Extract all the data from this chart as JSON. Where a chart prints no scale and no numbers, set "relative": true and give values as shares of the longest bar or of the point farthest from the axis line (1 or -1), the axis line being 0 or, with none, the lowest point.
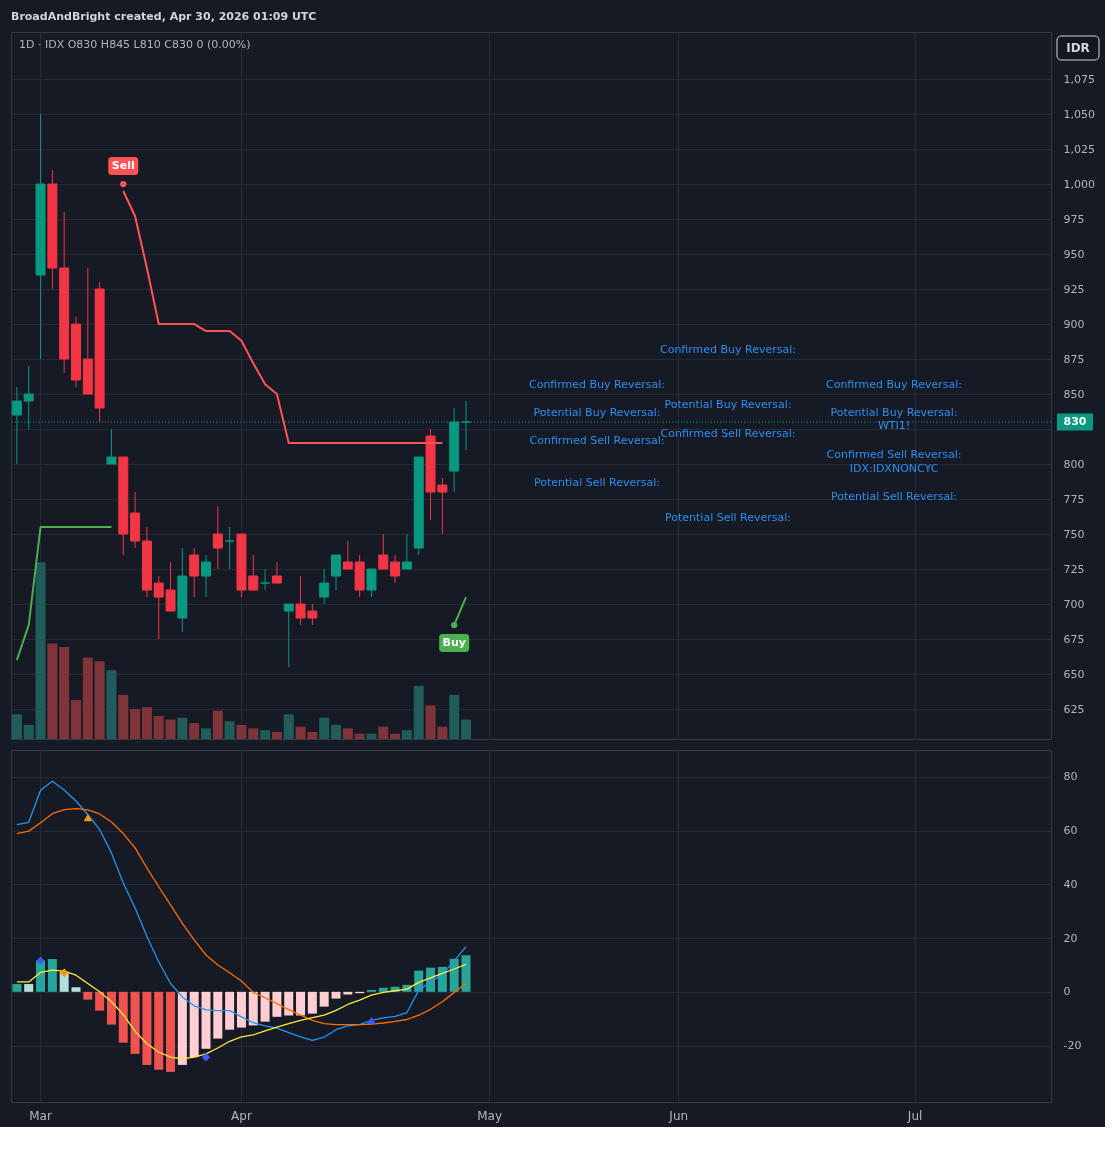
{
  "chart_data": [
    {
      "type": "candlestick",
      "title": "1D · IDX  O830 H845 L810 C830 0 (0.00%)",
      "categories": [
        null,
        null,
        null,
        null,
        null,
        null,
        null,
        null,
        null,
        null,
        null,
        null,
        null,
        null,
        null,
        null,
        null,
        null,
        null,
        null,
        null,
        null,
        null,
        null,
        null,
        null,
        null,
        null,
        null,
        null,
        null,
        null,
        null,
        null,
        null,
        null,
        null,
        null,
        null,
        null,
        null,
        null,
        null,
        null,
        null,
        null,
        null,
        null,
        null,
        null,
        null,
        null,
        null,
        null,
        null,
        null,
        null,
        null,
        null,
        null,
        null,
        null,
        null,
        null,
        null,
        null,
        null,
        null,
        null,
        null,
        null,
        null,
        null,
        null,
        null,
        null,
        null,
        null,
        null,
        null,
        null,
        null,
        null,
        null,
        null,
        null,
        null,
        null
      ],
      "ohlc": [
        [
          835,
          855,
          800,
          845
        ],
        [
          845,
          870,
          825,
          850
        ],
        [
          935,
          1050,
          875,
          1000
        ],
        [
          1000,
          1010,
          925,
          940
        ],
        [
          940,
          980,
          865,
          875
        ],
        [
          900,
          905,
          855,
          860
        ],
        [
          875,
          940,
          850,
          850
        ],
        [
          925,
          930,
          830,
          840
        ],
        [
          800,
          825,
          800,
          805
        ],
        [
          805,
          805,
          735,
          750
        ],
        [
          765,
          780,
          740,
          745
        ],
        [
          745,
          755,
          705,
          710
        ],
        [
          715,
          720,
          675,
          705
        ],
        [
          710,
          730,
          695,
          695
        ],
        [
          690,
          740,
          680,
          720
        ],
        [
          735,
          740,
          705,
          720
        ],
        [
          720,
          735,
          705,
          730
        ],
        [
          750,
          770,
          725,
          740
        ],
        [
          745,
          755,
          725,
          745
        ],
        [
          750,
          750,
          705,
          710
        ],
        [
          720,
          735,
          710,
          710
        ],
        [
          715,
          725,
          710,
          715
        ],
        [
          720,
          730,
          715,
          715
        ],
        [
          695,
          700,
          655,
          700
        ],
        [
          700,
          720,
          685,
          690
        ],
        [
          695,
          700,
          685,
          690
        ],
        [
          705,
          725,
          700,
          715
        ],
        [
          720,
          735,
          710,
          735
        ],
        [
          730,
          745,
          725,
          725
        ],
        [
          730,
          735,
          705,
          710
        ],
        [
          710,
          725,
          705,
          725
        ],
        [
          735,
          750,
          725,
          725
        ],
        [
          730,
          735,
          715,
          720
        ],
        [
          725,
          750,
          725,
          730
        ],
        [
          740,
          805,
          735,
          805
        ],
        [
          820,
          825,
          760,
          780
        ],
        [
          785,
          790,
          750,
          780
        ],
        [
          795,
          840,
          780,
          830
        ],
        [
          830,
          845,
          810,
          830
        ],
        null,
        null,
        null,
        null,
        null,
        null,
        null,
        null,
        null,
        null,
        null,
        null,
        null,
        null,
        null,
        null,
        null,
        null,
        null,
        null,
        null,
        null,
        null,
        null,
        null,
        null,
        null,
        null,
        null,
        null,
        null,
        null,
        null,
        null,
        null,
        null,
        null,
        null,
        null,
        null,
        null,
        null,
        null,
        null,
        null,
        null,
        null,
        null,
        null
      ],
      "colors": [
        "#089981",
        "#089981",
        "#089981",
        "#f23645",
        "#f23645",
        "#f23645",
        "#f23645",
        "#f23645",
        "#089981",
        "#f23645",
        "#f23645",
        "#f23645",
        "#f23645",
        "#f23645",
        "#089981",
        "#f23645",
        "#089981",
        "#f23645",
        "#089981",
        "#f23645",
        "#f23645",
        "#089981",
        "#f23645",
        "#089981",
        "#f23645",
        "#f23645",
        "#089981",
        "#089981",
        "#f23645",
        "#f23645",
        "#089981",
        "#f23645",
        "#f23645",
        "#089981",
        "#089981",
        "#f23645",
        "#f23645",
        "#089981",
        "#089981",
        null,
        null,
        null,
        null,
        null,
        null,
        null,
        null,
        null,
        null,
        null,
        null,
        null,
        null,
        null,
        null,
        null,
        null,
        null,
        null,
        null,
        null,
        null,
        null,
        null,
        null,
        null,
        null,
        null,
        null,
        null,
        null,
        null,
        null,
        null,
        null,
        null,
        null,
        null,
        null,
        null,
        null,
        null,
        null,
        null,
        null,
        null,
        null,
        null
      ],
      "series": [
        {
          "type": "line",
          "color": "#4caf50",
          "values": [
            660,
            685,
            755,
            755,
            755,
            755,
            755,
            755,
            755,
            null,
            null,
            null,
            null,
            null,
            null,
            null,
            null,
            null,
            null,
            null,
            null,
            null,
            null,
            null,
            null,
            null,
            null,
            null,
            null,
            null,
            null,
            null,
            null,
            null,
            null,
            null,
            null,
            null,
            null,
            null,
            null,
            null,
            null,
            null,
            null,
            null,
            null,
            null,
            null,
            null,
            null,
            null,
            null,
            null,
            null,
            null,
            null,
            null,
            null,
            null,
            null,
            null,
            null,
            null,
            null,
            null,
            null,
            null,
            null,
            null,
            null,
            null,
            null,
            null,
            null,
            null,
            null,
            null,
            null,
            null,
            null,
            null,
            null,
            null,
            null,
            null,
            null,
            null
          ]
        },
        {
          "type": "line",
          "color": "#ff5252",
          "values": [
            null,
            null,
            null,
            null,
            null,
            null,
            null,
            null,
            null,
            995,
            977,
            940,
            900,
            900,
            900,
            900,
            895,
            895,
            895,
            888,
            872,
            857,
            850,
            815,
            815,
            815,
            815,
            815,
            815,
            815,
            815,
            815,
            815,
            815,
            815,
            815,
            815,
            null,
            null,
            null,
            null,
            null,
            null,
            null,
            null,
            null,
            null,
            null,
            null,
            null,
            null,
            null,
            null,
            null,
            null,
            null,
            null,
            null,
            null,
            null,
            null,
            null,
            null,
            null,
            null,
            null,
            null,
            null,
            null,
            null,
            null,
            null,
            null,
            null,
            null,
            null,
            null,
            null,
            null,
            null,
            null,
            null,
            null,
            null,
            null,
            null,
            null,
            null
          ]
        },
        {
          "type": "line",
          "color": "#4caf50",
          "values": [
            null,
            null,
            null,
            null,
            null,
            null,
            null,
            null,
            null,
            null,
            null,
            null,
            null,
            null,
            null,
            null,
            null,
            null,
            null,
            null,
            null,
            null,
            null,
            null,
            null,
            null,
            null,
            null,
            null,
            null,
            null,
            null,
            null,
            null,
            null,
            null,
            null,
            685,
            705,
            null,
            null,
            null,
            null,
            null,
            null,
            null,
            null,
            null,
            null,
            null,
            null,
            null,
            null,
            null,
            null,
            null,
            null,
            null,
            null,
            null,
            null,
            null,
            null,
            null,
            null,
            null,
            null,
            null,
            null,
            null,
            null,
            null,
            null,
            null,
            null,
            null,
            null,
            null,
            null,
            null,
            null,
            null,
            null,
            null,
            null,
            null,
            null,
            null
          ]
        }
      ],
      "ylim": [
        603.6,
        1108.6
      ],
      "yticks": [
        625,
        650,
        675,
        700,
        725,
        750,
        775,
        800,
        {
          "value": 825,
          "label": null
        },
        850,
        875,
        900,
        925,
        950,
        975,
        {
          "value": 1000,
          "label": "1,000"
        },
        {
          "value": 1025,
          "label": "1,025"
        },
        {
          "value": 1050,
          "label": "1,050"
        },
        {
          "value": 1075,
          "label": "1,075"
        }
      ],
      "grid": true,
      "tick_labels": "y",
      "ref_lines": [
        {
          "axis": "y",
          "value": 830,
          "label": "830",
          "color": "#089981",
          "line_style": "dotted"
        }
      ],
      "annotations": [
        "BroadAndBright created, Apr 30, 2026 01:09 UTC",
        "IDR",
        "Confirmed Buy Reversal:",
        "Potential Buy Reversal:",
        "Confirmed Sell Reversal:",
        "Potential Sell Reversal:",
        "Confirmed Buy Reversal:",
        "Potential Buy Reversal:",
        "Confirmed Sell Reversal:",
        "Potential Sell Reversal:",
        "Confirmed Buy Reversal:",
        "Potential Buy Reversal:",
        "WTI1!",
        "Confirmed Sell Reversal:",
        "IDX:IDXNONCYC",
        "Potential Sell Reversal:",
        {
          "text": "Sell",
          "y": 1000
        },
        {
          "text": "Buy",
          "y": 685
        }
      ]
    },
    {
      "type": "bar",
      "relative": true,
      "categories": [
        null,
        null,
        null,
        null,
        null,
        null,
        null,
        null,
        null,
        null,
        null,
        null,
        null,
        null,
        null,
        null,
        null,
        null,
        null,
        null,
        null,
        null,
        null,
        null,
        null,
        null,
        null,
        null,
        null,
        null,
        null,
        null,
        null,
        null,
        null,
        null,
        null,
        null,
        null,
        null,
        null,
        null,
        null,
        null,
        null,
        null,
        null,
        null,
        null,
        null,
        null,
        null,
        null,
        null,
        null,
        null,
        null,
        null,
        null,
        null,
        null,
        null,
        null,
        null,
        null,
        null,
        null,
        null,
        null,
        null,
        null,
        null,
        null,
        null,
        null,
        null,
        null,
        null,
        null,
        null,
        null,
        null,
        null,
        null,
        null,
        null,
        null,
        null
      ],
      "values": [
        0.14,
        0.08,
        1,
        0.54,
        0.52,
        0.22,
        0.46,
        0.44,
        0.39,
        0.25,
        0.17,
        0.18,
        0.13,
        0.11,
        0.12,
        0.09,
        0.06,
        0.16,
        0.1,
        0.08,
        0.06,
        0.05,
        0.04,
        0.14,
        0.07,
        0.04,
        0.12,
        0.08,
        0.06,
        0.03,
        0.03,
        0.07,
        0.03,
        0.05,
        0.3,
        0.19,
        0.07,
        0.25,
        0.11,
        null,
        null,
        null,
        null,
        null,
        null,
        null,
        null,
        null,
        null,
        null,
        null,
        null,
        null,
        null,
        null,
        null,
        null,
        null,
        null,
        null,
        null,
        null,
        null,
        null,
        null,
        null,
        null,
        null,
        null,
        null,
        null,
        null,
        null,
        null,
        null,
        null,
        null,
        null,
        null,
        null,
        null,
        null,
        null,
        null,
        null,
        null,
        null,
        null
      ],
      "colors": [
        "#1f5c5a",
        "#1f5c5a",
        "#1f5c5a",
        "#7e3439",
        "#7e3439",
        "#7e3439",
        "#7e3439",
        "#7e3439",
        "#1f5c5a",
        "#7e3439",
        "#7e3439",
        "#7e3439",
        "#7e3439",
        "#7e3439",
        "#1f5c5a",
        "#7e3439",
        "#1f5c5a",
        "#7e3439",
        "#1f5c5a",
        "#7e3439",
        "#7e3439",
        "#1f5c5a",
        "#7e3439",
        "#1f5c5a",
        "#7e3439",
        "#7e3439",
        "#1f5c5a",
        "#1f5c5a",
        "#7e3439",
        "#7e3439",
        "#1f5c5a",
        "#7e3439",
        "#7e3439",
        "#1f5c5a",
        "#1f5c5a",
        "#7e3439",
        "#7e3439",
        "#1f5c5a",
        "#1f5c5a",
        null,
        null,
        null,
        null,
        null,
        null,
        null,
        null,
        null,
        null,
        null,
        null,
        null,
        null,
        null,
        null,
        null,
        null,
        null,
        null,
        null,
        null,
        null,
        null,
        null,
        null,
        null,
        null,
        null,
        null,
        null,
        null,
        null,
        null,
        null,
        null,
        null,
        null,
        null,
        null,
        null,
        null,
        null,
        null,
        null,
        null,
        null,
        null,
        null
      ],
      "tick_labels": false
    },
    {
      "type": "bar",
      "categories": [
        null,
        null,
        "Mar",
        null,
        null,
        null,
        null,
        null,
        null,
        null,
        null,
        null,
        null,
        null,
        null,
        null,
        null,
        null,
        null,
        "Apr",
        null,
        null,
        null,
        null,
        null,
        null,
        null,
        null,
        null,
        null,
        null,
        null,
        null,
        null,
        null,
        null,
        null,
        null,
        null,
        null,
        "May",
        null,
        null,
        null,
        null,
        null,
        null,
        null,
        null,
        null,
        null,
        null,
        null,
        null,
        null,
        null,
        "Jun",
        null,
        null,
        null,
        null,
        null,
        null,
        null,
        null,
        null,
        null,
        null,
        null,
        null,
        null,
        null,
        null,
        null,
        null,
        null,
        "Jul",
        null,
        null,
        null,
        null,
        null,
        null,
        null,
        null,
        null,
        null,
        null
      ],
      "series": [
        {
          "type": "bar",
          "colors": [
            "#26a69a",
            "#b2dfdb",
            "#26a69a",
            "#26a69a",
            "#b2dfdb",
            "#b2dfdb",
            "#ef5350",
            "#ef5350",
            "#ef5350",
            "#ef5350",
            "#ef5350",
            "#ef5350",
            "#ef5350",
            "#ef5350",
            "#ffcdd2",
            "#ffcdd2",
            "#ffcdd2",
            "#ffcdd2",
            "#ffcdd2",
            "#ffcdd2",
            "#ffcdd2",
            "#ffcdd2",
            "#ffcdd2",
            "#ffcdd2",
            "#ffcdd2",
            "#ffcdd2",
            "#ffcdd2",
            "#ffcdd2",
            "#ffcdd2",
            "#ffcdd2",
            "#26a69a",
            "#26a69a",
            "#26a69a",
            "#26a69a",
            "#26a69a",
            "#26a69a",
            "#26a69a",
            "#26a69a",
            "#26a69a",
            null,
            null,
            null,
            null,
            null,
            null,
            null,
            null,
            null,
            null,
            null,
            null,
            null,
            null,
            null,
            null,
            null,
            null,
            null,
            null,
            null,
            null,
            null,
            null,
            null,
            null,
            null,
            null,
            null,
            null,
            null,
            null,
            null,
            null,
            null,
            null,
            null,
            null,
            null,
            null,
            null,
            null,
            null,
            null,
            null,
            null,
            null,
            null,
            null
          ],
          "values": [
            2.9,
            2.9,
            11.6,
            12.2,
            7.5,
            1.7,
            -2.9,
            -7.0,
            -12.2,
            -18.9,
            -23.1,
            -27.2,
            -29.0,
            -29.8,
            -27.2,
            -24.3,
            -21.2,
            -17.4,
            -14.1,
            -13.3,
            -12.5,
            -11.1,
            -9.3,
            -8.8,
            -8.8,
            -8.1,
            -5.5,
            -2.5,
            -1.0,
            -0.5,
            0.7,
            1.5,
            1.9,
            2.6,
            7.9,
            9.0,
            9.3,
            12.3,
            13.6,
            null,
            null,
            null,
            null,
            null,
            null,
            null,
            null,
            null,
            null,
            null,
            null,
            null,
            null,
            null,
            null,
            null,
            null,
            null,
            null,
            null,
            null,
            null,
            null,
            null,
            null,
            null,
            null,
            null,
            null,
            null,
            null,
            null,
            null,
            null,
            null,
            null,
            null,
            null,
            null,
            null,
            null,
            null,
            null,
            null,
            null,
            null,
            null,
            null
          ]
        },
        {
          "type": "line",
          "color": "#2196f3",
          "values": [
            62.2,
            63.1,
            75,
            78.4,
            75.1,
            71,
            66,
            60.4,
            51.7,
            40.5,
            31.2,
            20.6,
            11.2,
            3.1,
            -1.9,
            -5.2,
            -6.7,
            -7.0,
            -7.0,
            -9.3,
            -11.5,
            -12.7,
            -13.5,
            -15.2,
            -16.8,
            -18.1,
            -16.9,
            -14.1,
            -12.7,
            -12.2,
            -10.6,
            -9.7,
            -9.1,
            -7.7,
            0.6,
            3.7,
            6.5,
            11.5,
            16.8,
            null,
            null,
            null,
            null,
            null,
            null,
            null,
            null,
            null,
            null,
            null,
            null,
            null,
            null,
            null,
            null,
            null,
            null,
            null,
            null,
            null,
            null,
            null,
            null,
            null,
            null,
            null,
            null,
            null,
            null,
            null,
            null,
            null,
            null,
            null,
            null,
            null,
            null,
            null,
            null,
            null,
            null,
            null,
            null,
            null,
            null,
            null,
            null,
            null
          ]
        },
        {
          "type": "line",
          "color": "#ff6d00",
          "values": [
            58.9,
            59.8,
            62.9,
            66.3,
            67.8,
            68.2,
            67.7,
            66.2,
            63.2,
            58.9,
            53.6,
            46.1,
            39.1,
            32.4,
            25.5,
            19.3,
            13.7,
            10,
            7.1,
            4.0,
            -0.2,
            -2.2,
            -4.4,
            -6.6,
            -8.7,
            -10.6,
            -11.8,
            -12.2,
            -12.2,
            -12.2,
            -12,
            -11.6,
            -11,
            -10.3,
            -8.7,
            -6.5,
            -3.7,
            -0.2,
            3.1,
            null,
            null,
            null,
            null,
            null,
            null,
            null,
            null,
            null,
            null,
            null,
            null,
            null,
            null,
            null,
            null,
            null,
            null,
            null,
            null,
            null,
            null,
            null,
            null,
            null,
            null,
            null,
            null,
            null,
            null,
            null,
            null,
            null,
            null,
            null,
            null,
            null,
            null,
            null,
            null,
            null,
            null,
            null,
            null,
            null,
            null,
            null,
            null,
            null
          ]
        },
        {
          "type": "line",
          "color": "#ffeb3b",
          "values": [
            3.7,
            3.7,
            7.2,
            8.1,
            7.7,
            6.2,
            3.1,
            0,
            -3.7,
            -8.5,
            -14.7,
            -19.3,
            -22.4,
            -24.3,
            -24.9,
            -24.3,
            -23.1,
            -20.9,
            -18.4,
            -16.8,
            -16,
            -14.5,
            -13.1,
            -11.8,
            -10.6,
            -9.6,
            -8.7,
            -6.9,
            -4.7,
            -3.1,
            -1.2,
            -0.2,
            0.4,
            1,
            3.5,
            5.2,
            6.9,
            8.5,
            10.2,
            null,
            null,
            null,
            null,
            null,
            null,
            null,
            null,
            null,
            null,
            null,
            null,
            null,
            null,
            null,
            null,
            null,
            null,
            null,
            null,
            null,
            null,
            null,
            null,
            null,
            null,
            null,
            null,
            null,
            null,
            null,
            null,
            null,
            null,
            null,
            null,
            null,
            null,
            null,
            null,
            null,
            null,
            null,
            null,
            null,
            null,
            null,
            null,
            null
          ]
        },
        {
          "type": "scatter",
          "color": "#3d5afe",
          "marker": "diamond",
          "values": [
            null,
            null,
            11.6,
            null,
            null,
            null,
            null,
            null,
            null,
            null,
            null,
            null,
            null,
            null,
            null,
            null,
            -24.3,
            null,
            null,
            null,
            null,
            null,
            null,
            null,
            null,
            null,
            null,
            null,
            null,
            null,
            null,
            null,
            null,
            null,
            null,
            null,
            null,
            null,
            null,
            null,
            null,
            null,
            null,
            null,
            null,
            null,
            null,
            null,
            null,
            null,
            null,
            null,
            null,
            null,
            null,
            null,
            null,
            null,
            null,
            null,
            null,
            null,
            null,
            null,
            null,
            null,
            null,
            null,
            null,
            null,
            null,
            null,
            null,
            null,
            null,
            null,
            null,
            null,
            null,
            null,
            null,
            null,
            null,
            null,
            null,
            null,
            null,
            null
          ]
        },
        {
          "type": "scatter",
          "color": "#ff9800",
          "marker": "diamond",
          "values": [
            null,
            null,
            null,
            null,
            7.1,
            null,
            null,
            null,
            null,
            null,
            null,
            null,
            null,
            null,
            null,
            null,
            null,
            null,
            null,
            null,
            null,
            null,
            null,
            null,
            null,
            null,
            null,
            null,
            null,
            null,
            null,
            null,
            null,
            null,
            null,
            null,
            null,
            null,
            null,
            null,
            null,
            null,
            null,
            null,
            null,
            null,
            null,
            null,
            null,
            null,
            null,
            null,
            null,
            null,
            null,
            null,
            null,
            null,
            null,
            null,
            null,
            null,
            null,
            null,
            null,
            null,
            null,
            null,
            null,
            null,
            null,
            null,
            null,
            null,
            null,
            null,
            null,
            null,
            null,
            null,
            null,
            null,
            null,
            null,
            null,
            null,
            null,
            null
          ]
        },
        {
          "type": "scatter",
          "color": "#ff9800",
          "marker": "triangle",
          "values": [
            null,
            null,
            null,
            null,
            null,
            null,
            64.8,
            null,
            null,
            null,
            null,
            null,
            null,
            null,
            null,
            null,
            null,
            null,
            null,
            null,
            null,
            null,
            null,
            null,
            null,
            null,
            null,
            null,
            null,
            null,
            null,
            null,
            null,
            null,
            null,
            null,
            null,
            null,
            null,
            null,
            null,
            null,
            null,
            null,
            null,
            null,
            null,
            null,
            null,
            null,
            null,
            null,
            null,
            null,
            null,
            null,
            null,
            null,
            null,
            null,
            null,
            null,
            null,
            null,
            null,
            null,
            null,
            null,
            null,
            null,
            null,
            null,
            null,
            null,
            null,
            null,
            null,
            null,
            null,
            null,
            null,
            null,
            null,
            null,
            null,
            null,
            null,
            null
          ]
        },
        {
          "type": "scatter",
          "color": "#3d5afe",
          "marker": "triangle",
          "values": [
            null,
            null,
            null,
            null,
            null,
            null,
            null,
            null,
            null,
            null,
            null,
            null,
            null,
            null,
            null,
            null,
            null,
            null,
            null,
            null,
            null,
            null,
            null,
            null,
            null,
            null,
            null,
            null,
            null,
            null,
            -10.6,
            null,
            null,
            null,
            null,
            null,
            null,
            null,
            null,
            null,
            null,
            null,
            null,
            null,
            null,
            null,
            null,
            null,
            null,
            null,
            null,
            null,
            null,
            null,
            null,
            null,
            null,
            null,
            null,
            null,
            null,
            null,
            null,
            null,
            null,
            null,
            null,
            null,
            null,
            null,
            null,
            null,
            null,
            null,
            null,
            null,
            null,
            null,
            null,
            null,
            null,
            null,
            null,
            null,
            null,
            null,
            null,
            null
          ]
        }
      ],
      "ylim": [
        -41,
        90
      ],
      "yticks": [
        -20,
        0,
        20,
        40,
        60,
        80
      ],
      "grid": true
    }
  ]
}
